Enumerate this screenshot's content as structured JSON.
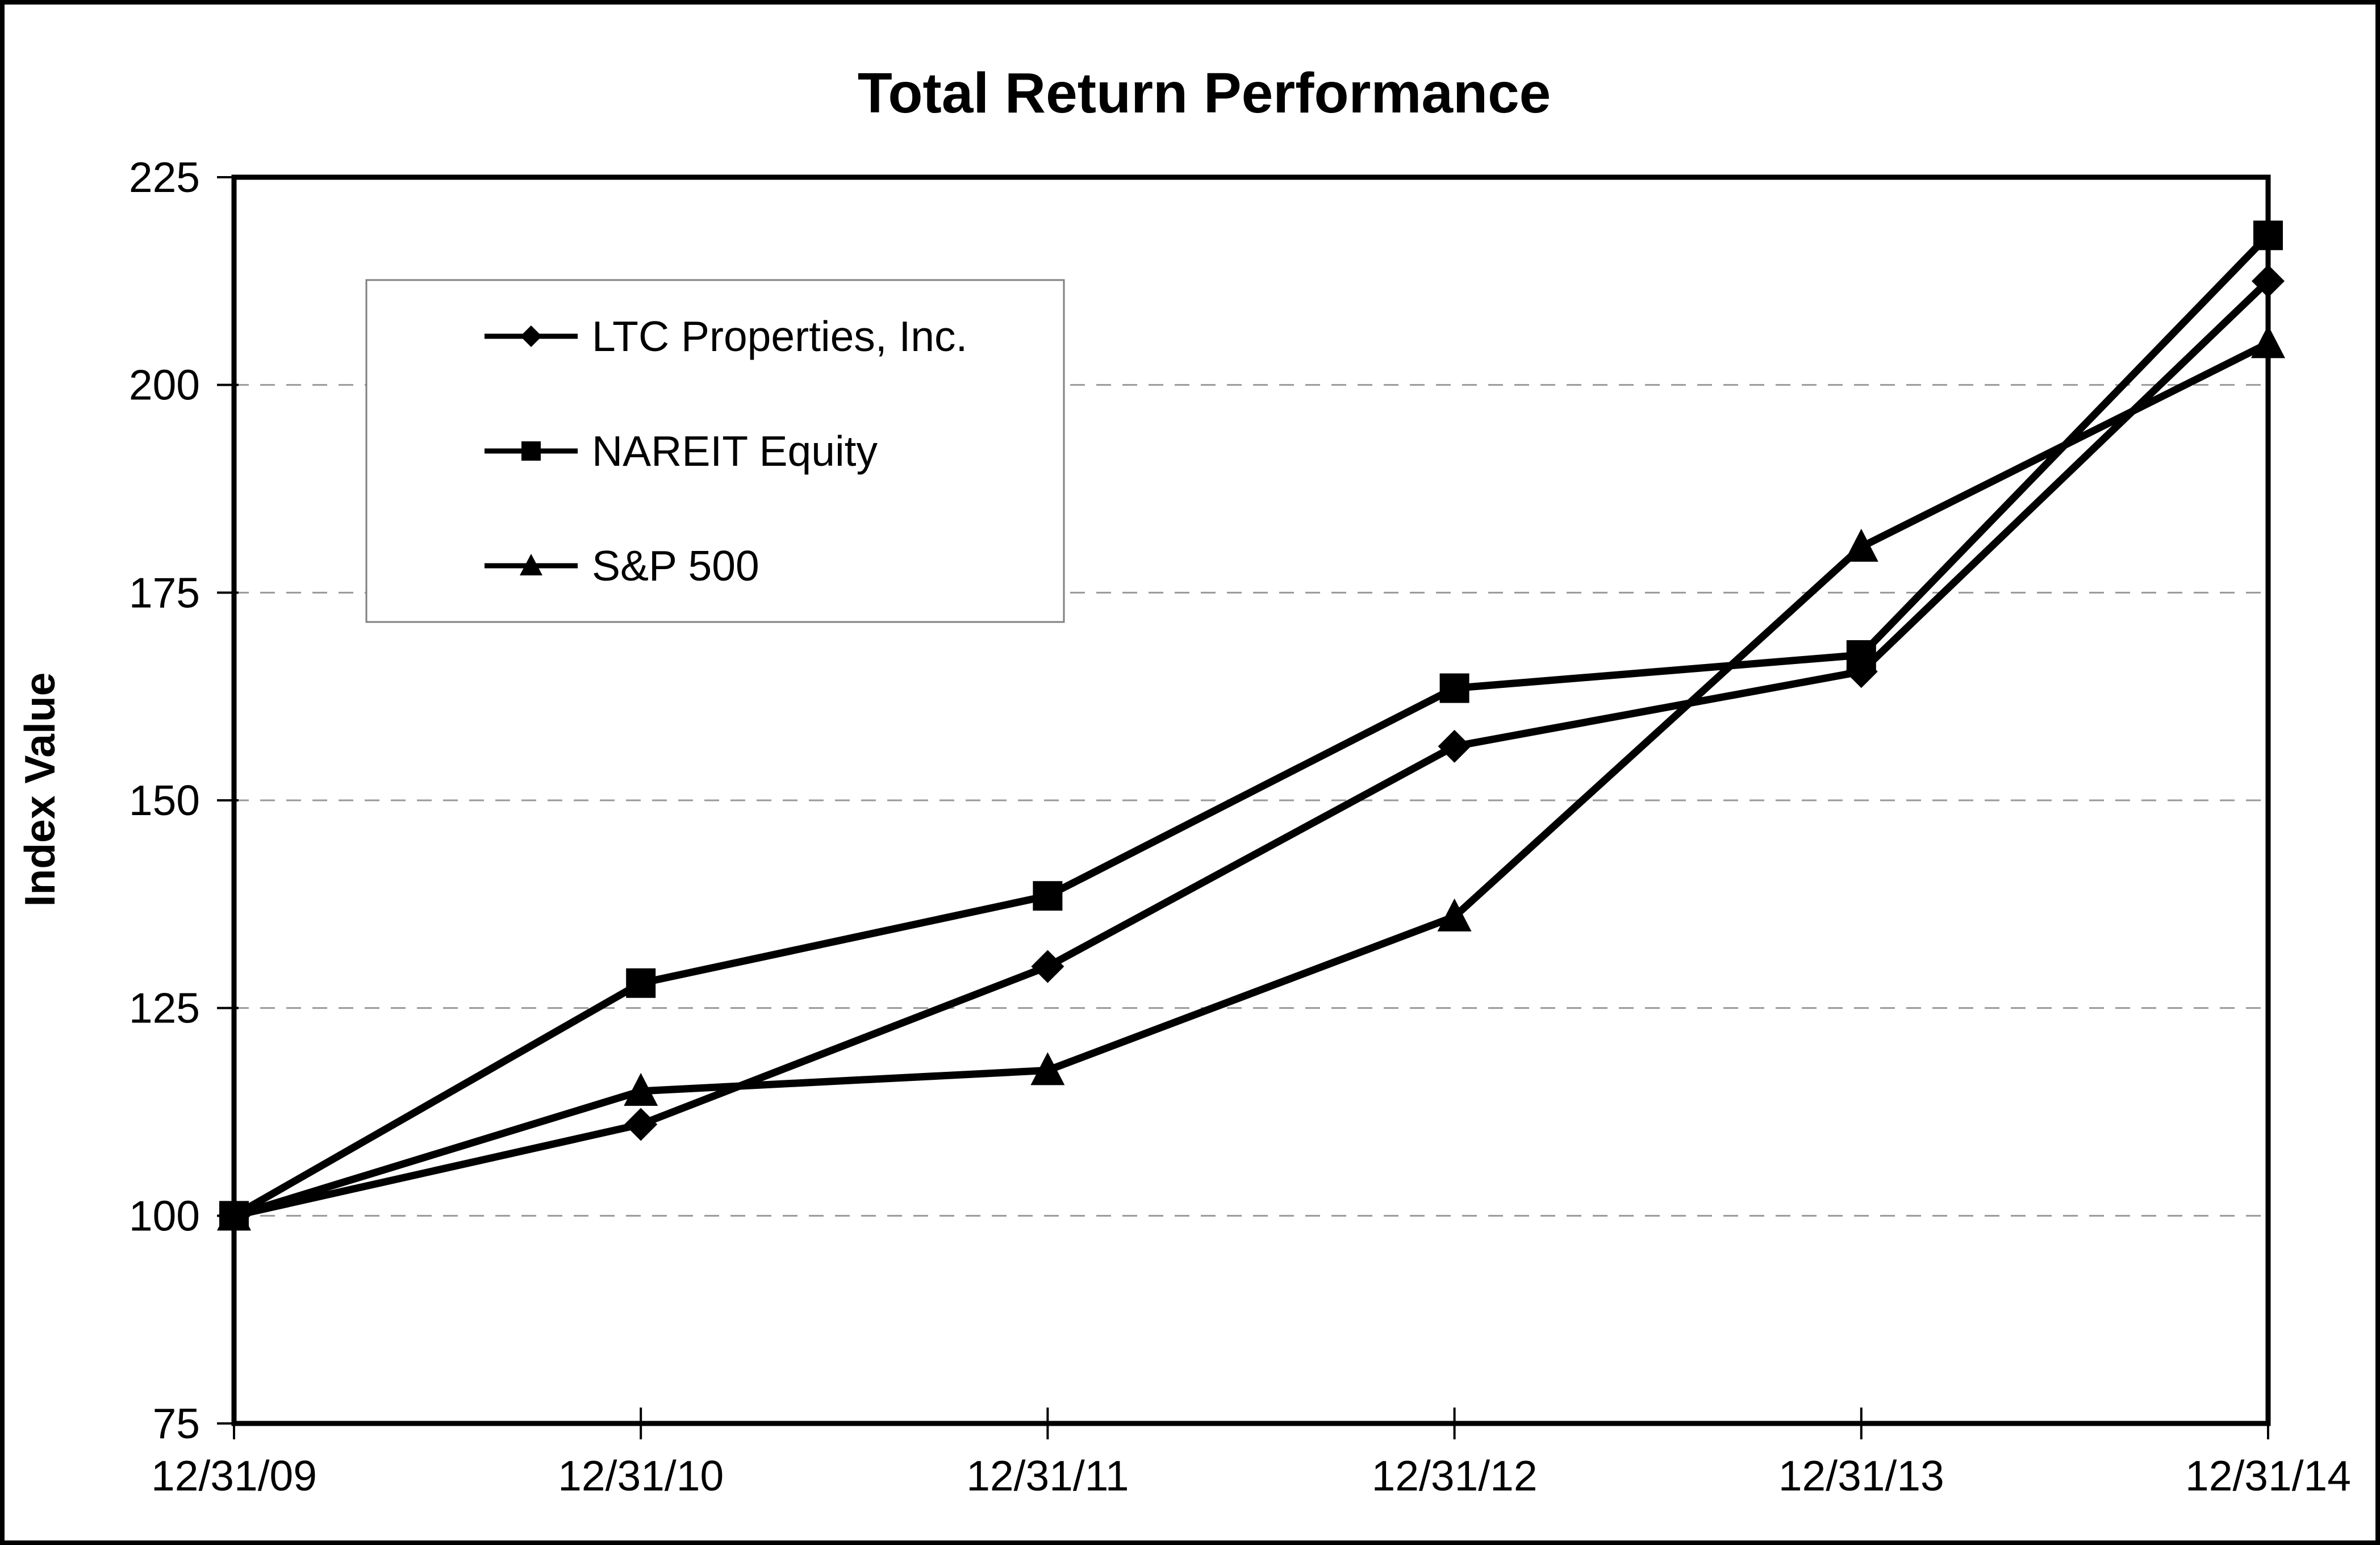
{
  "page": {
    "background": "#ffffff",
    "outer_border_color": "#000000"
  },
  "chart_data": {
    "type": "line",
    "title": "Total Return Performance",
    "ylabel": "Index Value",
    "xlabel": "",
    "categories": [
      "12/31/09",
      "12/31/10",
      "12/31/11",
      "12/31/12",
      "12/31/13",
      "12/31/14"
    ],
    "series": [
      {
        "name": "LTC Properties, Inc.",
        "marker": "diamond",
        "color": "#000000",
        "values": [
          100,
          111,
          130,
          156.5,
          165.5,
          212.5
        ]
      },
      {
        "name": "NAREIT Equity",
        "marker": "square",
        "color": "#000000",
        "values": [
          100,
          128,
          138.5,
          163.5,
          167.5,
          218
        ]
      },
      {
        "name": "S&P 500",
        "marker": "triangle",
        "color": "#000000",
        "values": [
          100,
          115,
          117.5,
          136,
          180.5,
          205
        ]
      }
    ],
    "ylim": [
      75,
      225
    ],
    "yticks": [
      75,
      100,
      125,
      150,
      175,
      200,
      225
    ],
    "gridline_values": [
      100,
      125,
      150,
      175,
      200
    ],
    "gridline_color": "#999999",
    "gridline_style": "dashed",
    "axis_color": "#000000",
    "legend": {
      "position": "upper-left-inside",
      "background": "#ffffff",
      "border_color": "#808080"
    }
  }
}
